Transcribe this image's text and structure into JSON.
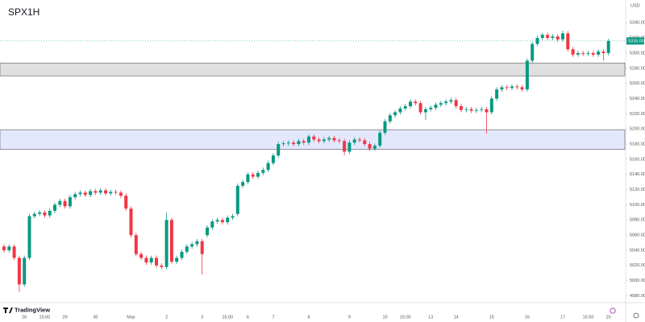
{
  "chart_data": {
    "type": "candlestick",
    "title": "SPX1H",
    "currency": "USD",
    "brand": "TradingView",
    "up_color": "#089981",
    "down_color": "#f23645",
    "ylim": [
      4972,
      5370
    ],
    "yticks": [
      {
        "value": 4980,
        "label": "4980.00"
      },
      {
        "value": 5000,
        "label": "5000.00"
      },
      {
        "value": 5020,
        "label": "5020.00"
      },
      {
        "value": 5040,
        "label": "5040.00"
      },
      {
        "value": 5060,
        "label": "5060.00"
      },
      {
        "value": 5080,
        "label": "5080.00"
      },
      {
        "value": 5100,
        "label": "5100.00"
      },
      {
        "value": 5120,
        "label": "5120.00"
      },
      {
        "value": 5140,
        "label": "5140.00"
      },
      {
        "value": 5160,
        "label": "5160.00"
      },
      {
        "value": 5180,
        "label": "5180.00"
      },
      {
        "value": 5200,
        "label": "5200.00"
      },
      {
        "value": 5220,
        "label": "5220.00"
      },
      {
        "value": 5240,
        "label": "5240.00"
      },
      {
        "value": 5260,
        "label": "5260.00"
      },
      {
        "value": 5280,
        "label": "5280.00"
      },
      {
        "value": 5300,
        "label": "5300.00"
      },
      {
        "value": 5320,
        "label": "5320.00"
      },
      {
        "value": 5340,
        "label": "5340.00"
      }
    ],
    "last_price": {
      "value": 5316,
      "label": "5316.00"
    },
    "zones": [
      {
        "from": 5270,
        "to": 5287,
        "color": "#e0e0e0"
      },
      {
        "from": 5173,
        "to": 5199,
        "color": "#e3e8fd"
      }
    ],
    "categories": [
      null,
      null,
      null,
      null,
      "26",
      null,
      null,
      null,
      "15:00",
      null,
      null,
      null,
      "29",
      null,
      null,
      null,
      null,
      null,
      "30",
      null,
      null,
      null,
      null,
      null,
      null,
      "May",
      null,
      null,
      null,
      null,
      null,
      null,
      "2",
      null,
      null,
      null,
      null,
      null,
      null,
      "3",
      null,
      null,
      null,
      null,
      "15:00",
      null,
      null,
      null,
      "6",
      null,
      null,
      null,
      null,
      "7",
      null,
      null,
      null,
      null,
      null,
      null,
      "8",
      null,
      null,
      null,
      null,
      null,
      null,
      null,
      "9",
      null,
      null,
      null,
      null,
      null,
      null,
      "10",
      null,
      null,
      null,
      "15:00",
      null,
      null,
      null,
      null,
      "13",
      null,
      null,
      null,
      null,
      "14",
      null,
      null,
      null,
      null,
      null,
      null,
      "15",
      null,
      null,
      null,
      null,
      null,
      null,
      "16",
      null,
      null,
      null,
      null,
      null,
      null,
      "17",
      null,
      null,
      null,
      null,
      "15:00",
      null,
      null,
      null,
      "20"
    ],
    "open": [
      5045,
      5040,
      5045,
      5030,
      4995,
      5030,
      5085,
      5088,
      5090,
      5086,
      5092,
      5100,
      5105,
      5098,
      5110,
      5114,
      5116,
      5113,
      5118,
      5116,
      5119,
      5115,
      5117,
      5116,
      5112,
      5095,
      5060,
      5035,
      5030,
      5024,
      5030,
      5020,
      5018,
      5080,
      5025,
      5030,
      5038,
      5045,
      5048,
      5052,
      5060,
      5070,
      5078,
      5080,
      5077,
      5083,
      5088,
      5125,
      5130,
      5140,
      5137,
      5142,
      5146,
      5155,
      5165,
      5180,
      5181,
      5182,
      5180,
      5184,
      5182,
      5190,
      5186,
      5184,
      5186,
      5188,
      5185,
      5184,
      5170,
      5182,
      5186,
      5185,
      5180,
      5174,
      5178,
      5195,
      5210,
      5218,
      5222,
      5227,
      5230,
      5236,
      5234,
      5222,
      5226,
      5228,
      5232,
      5234,
      5236,
      5238,
      5230,
      5225,
      5226,
      5224,
      5225,
      5226,
      5222,
      5240,
      5252,
      5255,
      5254,
      5256,
      5255,
      5252,
      5290,
      5312,
      5320,
      5324,
      5320,
      5322,
      5318,
      5326,
      5305,
      5298,
      5300,
      5299,
      5300,
      5298,
      5302,
      5300
    ],
    "high": [
      5048,
      5048,
      5048,
      5033,
      5033,
      5088,
      5091,
      5093,
      5093,
      5095,
      5103,
      5108,
      5108,
      5113,
      5117,
      5119,
      5119,
      5121,
      5121,
      5122,
      5122,
      5120,
      5120,
      5119,
      5115,
      5098,
      5063,
      5038,
      5033,
      5033,
      5033,
      5023,
      5090,
      5083,
      5033,
      5041,
      5048,
      5051,
      5055,
      5055,
      5073,
      5081,
      5083,
      5083,
      5086,
      5088,
      5128,
      5133,
      5143,
      5143,
      5145,
      5149,
      5158,
      5168,
      5183,
      5184,
      5185,
      5185,
      5187,
      5187,
      5193,
      5193,
      5189,
      5189,
      5191,
      5191,
      5188,
      5187,
      5185,
      5189,
      5189,
      5188,
      5183,
      5181,
      5198,
      5213,
      5221,
      5225,
      5230,
      5233,
      5239,
      5239,
      5237,
      5229,
      5231,
      5235,
      5237,
      5239,
      5241,
      5241,
      5233,
      5229,
      5229,
      5228,
      5229,
      5229,
      5243,
      5255,
      5258,
      5258,
      5259,
      5259,
      5258,
      5293,
      5315,
      5323,
      5327,
      5327,
      5325,
      5325,
      5330,
      5329,
      5308,
      5303,
      5303,
      5303,
      5303,
      5305,
      5305,
      5319
    ],
    "low": [
      5037,
      5037,
      5027,
      4985,
      4992,
      5027,
      5082,
      5085,
      5083,
      5083,
      5089,
      5097,
      5095,
      5095,
      5107,
      5111,
      5110,
      5110,
      5113,
      5113,
      5112,
      5112,
      5113,
      5109,
      5092,
      5057,
      5032,
      5027,
      5021,
      5021,
      5017,
      5015,
      5015,
      5022,
      5022,
      5027,
      5035,
      5042,
      5045,
      5008,
      5057,
      5067,
      5075,
      5074,
      5074,
      5080,
      5085,
      5122,
      5127,
      5134,
      5134,
      5139,
      5143,
      5152,
      5162,
      5177,
      5178,
      5177,
      5177,
      5179,
      5179,
      5183,
      5181,
      5181,
      5183,
      5182,
      5181,
      5165,
      5167,
      5179,
      5182,
      5177,
      5171,
      5171,
      5175,
      5192,
      5207,
      5215,
      5219,
      5224,
      5227,
      5231,
      5219,
      5212,
      5223,
      5225,
      5229,
      5231,
      5233,
      5227,
      5222,
      5222,
      5221,
      5221,
      5222,
      5194,
      5219,
      5237,
      5249,
      5251,
      5251,
      5252,
      5249,
      5249,
      5287,
      5309,
      5317,
      5317,
      5317,
      5315,
      5315,
      5302,
      5295,
      5295,
      5296,
      5296,
      5295,
      5295,
      5290,
      5297
    ],
    "close": [
      5040,
      5045,
      5030,
      4995,
      5030,
      5085,
      5088,
      5090,
      5086,
      5092,
      5100,
      5105,
      5098,
      5110,
      5114,
      5116,
      5113,
      5118,
      5116,
      5119,
      5115,
      5117,
      5116,
      5112,
      5095,
      5060,
      5035,
      5030,
      5024,
      5030,
      5020,
      5018,
      5080,
      5025,
      5030,
      5038,
      5045,
      5048,
      5052,
      5035,
      5070,
      5078,
      5080,
      5077,
      5083,
      5085,
      5125,
      5130,
      5140,
      5137,
      5142,
      5146,
      5155,
      5165,
      5180,
      5181,
      5182,
      5180,
      5184,
      5182,
      5190,
      5186,
      5184,
      5186,
      5188,
      5185,
      5184,
      5170,
      5182,
      5186,
      5185,
      5180,
      5174,
      5178,
      5195,
      5210,
      5218,
      5222,
      5227,
      5230,
      5236,
      5234,
      5222,
      5226,
      5228,
      5232,
      5234,
      5236,
      5238,
      5230,
      5225,
      5226,
      5224,
      5225,
      5226,
      5222,
      5240,
      5252,
      5255,
      5254,
      5256,
      5255,
      5252,
      5290,
      5312,
      5320,
      5324,
      5320,
      5322,
      5318,
      5326,
      5305,
      5298,
      5300,
      5299,
      5300,
      5298,
      5302,
      5300,
      5316
    ]
  }
}
